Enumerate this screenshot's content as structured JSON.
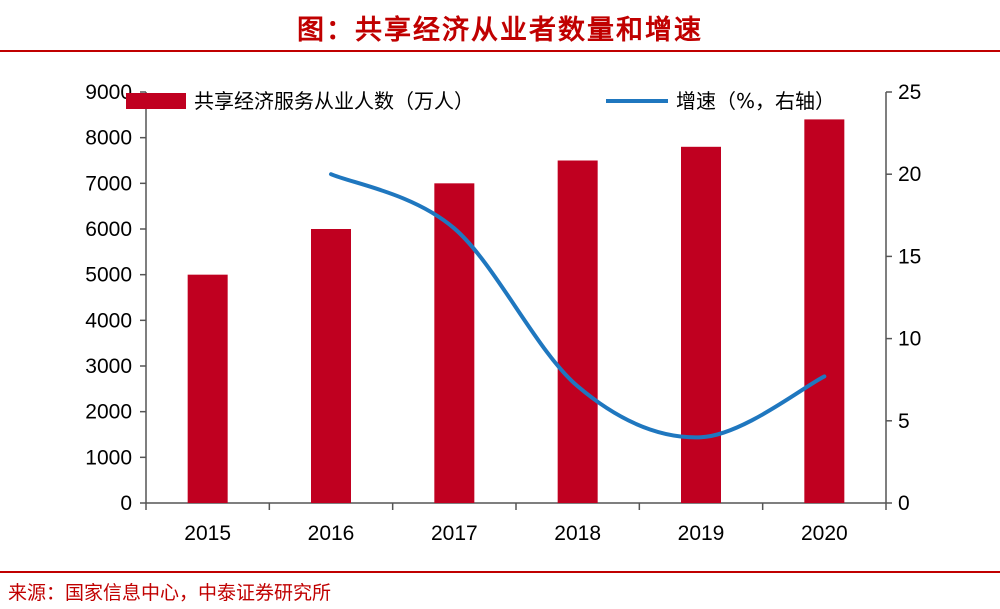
{
  "title": "图：共享经济从业者数量和增速",
  "source": "来源：国家信息中心，中泰证券研究所",
  "colors": {
    "bar": "#C00020",
    "line": "#1F77BF",
    "accent": "#C00000"
  },
  "chart_data": {
    "type": "bar",
    "categories": [
      "2015",
      "2016",
      "2017",
      "2018",
      "2019",
      "2020"
    ],
    "series": [
      {
        "name": "共享经济服务从业人数（万人）",
        "type": "bar",
        "axis": "left",
        "values": [
          5000,
          6000,
          7000,
          7500,
          7800,
          8400
        ]
      },
      {
        "name": "增速（%，右轴）",
        "type": "line",
        "axis": "right",
        "values": [
          null,
          20.0,
          16.7,
          7.1,
          4.0,
          7.7
        ]
      }
    ],
    "y_left": {
      "min": 0,
      "max": 9000,
      "step": 1000,
      "ticks": [
        "0",
        "1000",
        "2000",
        "3000",
        "4000",
        "5000",
        "6000",
        "7000",
        "8000",
        "9000"
      ]
    },
    "y_right": {
      "min": 0,
      "max": 25,
      "step": 5,
      "ticks": [
        "0",
        "5",
        "10",
        "15",
        "20",
        "25"
      ]
    },
    "legend": [
      "共享经济服务从业人数（万人）",
      "增速（%，右轴）"
    ]
  }
}
